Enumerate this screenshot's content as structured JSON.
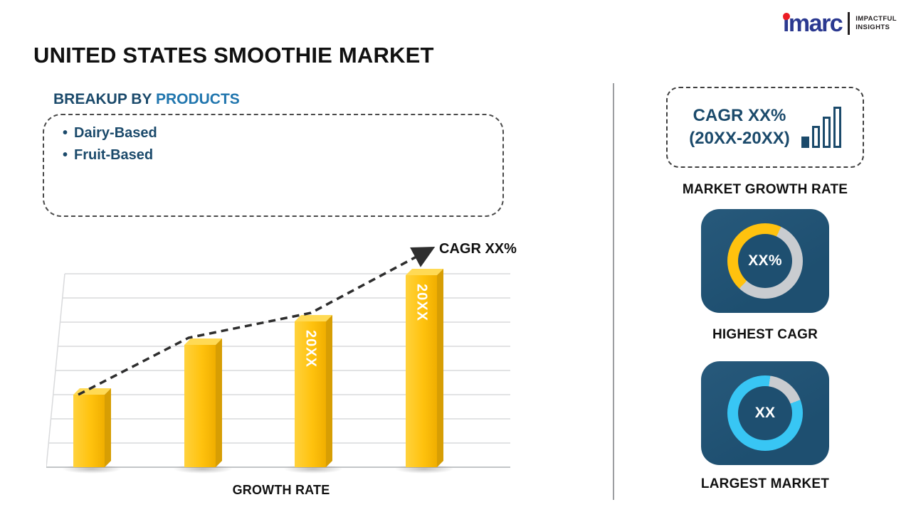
{
  "page": {
    "title": "UNITED STATES SMOOTHIE MARKET"
  },
  "logo": {
    "brand": "imarc",
    "tagline_line1": "IMPACTFUL",
    "tagline_line2": "INSIGHTS"
  },
  "breakup": {
    "heading_prefix": "BREAKUP BY",
    "heading_highlight": "PRODUCTS",
    "items": [
      "Dairy-Based",
      "Fruit-Based"
    ]
  },
  "sidebar": {
    "cagr_line1": "CAGR XX%",
    "cagr_line2": "(20XX-20XX)",
    "market_growth_label": "MARKET GROWTH RATE",
    "highest_cagr_label": "HIGHEST CAGR",
    "largest_market_label": "LARGEST MARKET"
  },
  "chart_data": [
    {
      "type": "bar",
      "title": "",
      "categories": [
        "",
        "",
        "20XX",
        "20XX"
      ],
      "values": [
        25,
        42,
        50,
        66
      ],
      "xlabel": "GROWTH RATE",
      "ylabel": "",
      "ylim": [
        0,
        70
      ],
      "grid": true,
      "annotation": "CAGR XX%",
      "trendline": "dashed ascending arrow",
      "bar_color": "#FFC20E"
    },
    {
      "type": "pie",
      "style": "donut",
      "label": "HIGHEST CAGR",
      "center_text": "XX%",
      "start_deg": 25,
      "segments": [
        {
          "name": "remainder",
          "color": "#C9CCD0",
          "fraction": 0.55
        },
        {
          "name": "highlight",
          "color": "#FFC20E",
          "fraction": 0.45
        }
      ]
    },
    {
      "type": "pie",
      "style": "donut",
      "label": "LARGEST MARKET",
      "center_text": "XX",
      "start_deg": 8,
      "segments": [
        {
          "name": "remainder",
          "color": "#C9CCD0",
          "fraction": 0.17
        },
        {
          "name": "highlight",
          "color": "#38C6F4",
          "fraction": 0.83
        }
      ]
    }
  ],
  "colors": {
    "accent_yellow": "#FFC20E",
    "navy_card": "#1E4F70",
    "dark_navy_text": "#1B4A6B",
    "heading_blue": "#2176AE",
    "cyan": "#38C6F4",
    "ring_gray": "#C9CCD0",
    "logo_blue": "#2B3990",
    "logo_red": "#EC1C24"
  }
}
